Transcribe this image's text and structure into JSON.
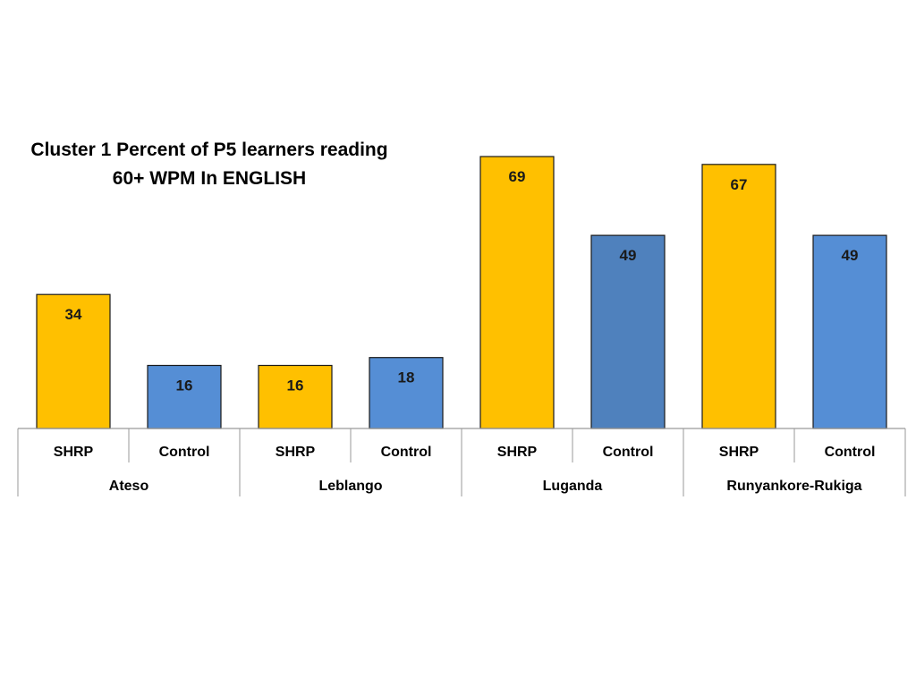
{
  "chart_data": {
    "type": "bar",
    "title_lines": [
      "Cluster 1 Percent of P5 learners reading",
      "60+ WPM  In ENGLISH"
    ],
    "groups": [
      {
        "label": "Ateso",
        "bars": [
          {
            "label": "SHRP",
            "value": 34
          },
          {
            "label": "Control",
            "value": 16
          }
        ]
      },
      {
        "label": "Leblango",
        "bars": [
          {
            "label": "SHRP",
            "value": 16
          },
          {
            "label": "Control",
            "value": 18
          }
        ]
      },
      {
        "label": "Luganda",
        "bars": [
          {
            "label": "SHRP",
            "value": 69
          },
          {
            "label": "Control",
            "value": 49
          }
        ]
      },
      {
        "label": "Runyankore-Rukiga",
        "bars": [
          {
            "label": "SHRP",
            "value": 67
          },
          {
            "label": "Control",
            "value": 49
          }
        ]
      }
    ],
    "ylim": [
      0,
      80
    ],
    "grid": false,
    "legend": "none",
    "colors": {
      "SHRP": "#FFC000",
      "Control": "#558ED5",
      "Control_Luganda": "#4F81BD",
      "bar_outline": "#1a1a1a",
      "axis_lines": "#9a9a9a"
    }
  }
}
